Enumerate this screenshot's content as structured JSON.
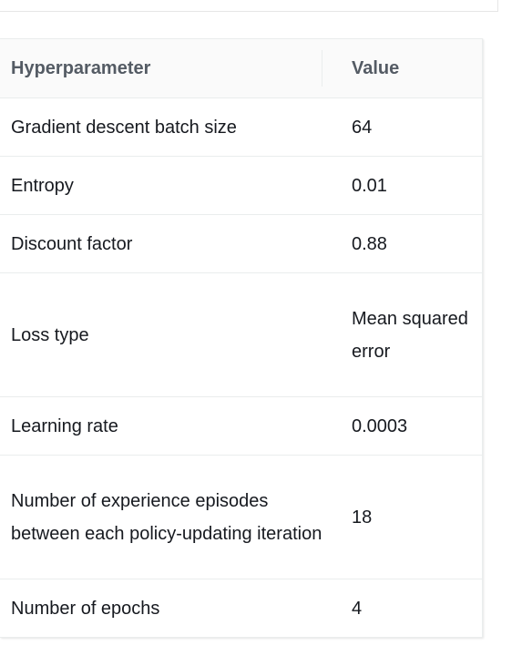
{
  "table": {
    "headers": {
      "param": "Hyperparameter",
      "value": "Value"
    },
    "rows": [
      {
        "param": "Gradient descent batch size",
        "value": "64"
      },
      {
        "param": "Entropy",
        "value": "0.01"
      },
      {
        "param": "Discount factor",
        "value": "0.88"
      },
      {
        "param": "Loss type",
        "value": "Mean squared error"
      },
      {
        "param": "Learning rate",
        "value": "0.0003"
      },
      {
        "param": "Number of experience episodes between each policy-updating iteration",
        "value": "18"
      },
      {
        "param": "Number of epochs",
        "value": "4"
      }
    ]
  }
}
